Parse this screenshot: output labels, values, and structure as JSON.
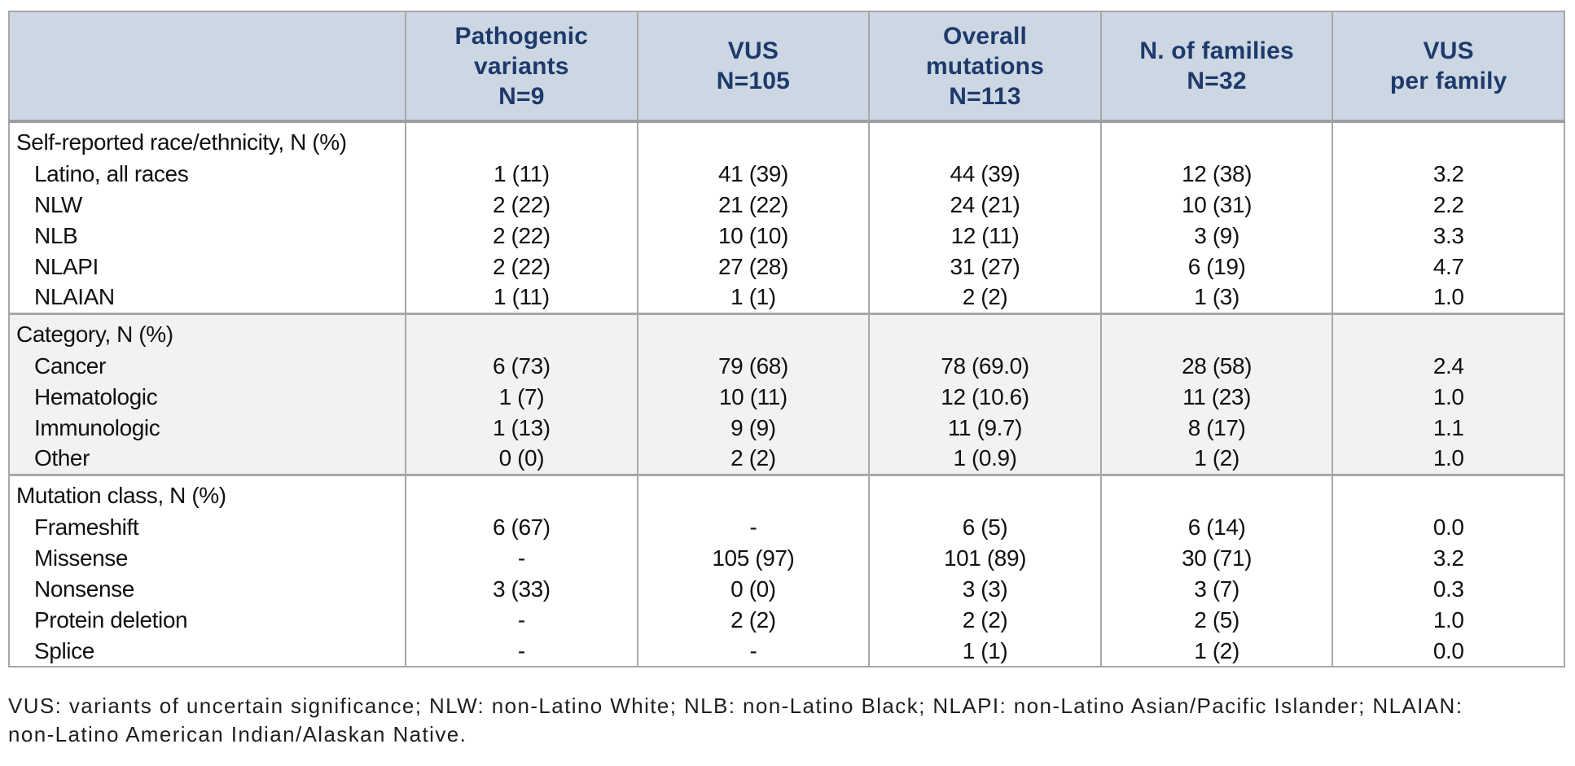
{
  "table": {
    "corner": "",
    "headers": [
      {
        "lines": [
          "Pathogenic",
          "variants",
          "N=9"
        ]
      },
      {
        "lines": [
          "VUS",
          "N=105"
        ]
      },
      {
        "lines": [
          "Overall",
          "mutations",
          "N=113"
        ]
      },
      {
        "lines": [
          "N. of families",
          "N=32"
        ]
      },
      {
        "lines": [
          "VUS",
          "per family"
        ]
      }
    ],
    "sections": [
      {
        "title": "Self-reported race/ethnicity, N (%)",
        "rows": [
          {
            "label": "Latino, all races",
            "values": [
              "1 (11)",
              "41 (39)",
              "44 (39)",
              "12 (38)",
              "3.2"
            ]
          },
          {
            "label": "NLW",
            "values": [
              "2 (22)",
              "21 (22)",
              "24 (21)",
              "10 (31)",
              "2.2"
            ]
          },
          {
            "label": "NLB",
            "values": [
              "2 (22)",
              "10 (10)",
              "12 (11)",
              "3 (9)",
              "3.3"
            ]
          },
          {
            "label": "NLAPI",
            "values": [
              "2 (22)",
              "27 (28)",
              "31 (27)",
              "6 (19)",
              "4.7"
            ]
          },
          {
            "label": "NLAIAN",
            "values": [
              "1 (11)",
              "1 (1)",
              "2 (2)",
              "1 (3)",
              "1.0"
            ]
          }
        ]
      },
      {
        "title": "Category, N (%)",
        "rows": [
          {
            "label": "Cancer",
            "values": [
              "6 (73)",
              "79 (68)",
              "78 (69.0)",
              "28 (58)",
              "2.4"
            ]
          },
          {
            "label": "Hematologic",
            "values": [
              "1 (7)",
              "10 (11)",
              "12 (10.6)",
              "11 (23)",
              "1.0"
            ]
          },
          {
            "label": "Immunologic",
            "values": [
              "1 (13)",
              "9 (9)",
              "11 (9.7)",
              "8 (17)",
              "1.1"
            ]
          },
          {
            "label": "Other",
            "values": [
              "0 (0)",
              "2 (2)",
              "1 (0.9)",
              "1 (2)",
              "1.0"
            ]
          }
        ]
      },
      {
        "title": "Mutation class, N (%)",
        "rows": [
          {
            "label": "Frameshift",
            "values": [
              "6 (67)",
              "-",
              "6 (5)",
              "6 (14)",
              "0.0"
            ]
          },
          {
            "label": "Missense",
            "values": [
              "-",
              "105 (97)",
              "101 (89)",
              "30 (71)",
              "3.2"
            ]
          },
          {
            "label": "Nonsense",
            "values": [
              "3 (33)",
              "0 (0)",
              "3 (3)",
              "3 (7)",
              "0.3"
            ]
          },
          {
            "label": "Protein deletion",
            "values": [
              "-",
              "2 (2)",
              "2 (2)",
              "2 (5)",
              "1.0"
            ]
          },
          {
            "label": "Splice",
            "values": [
              "-",
              "-",
              "1 (1)",
              "1 (2)",
              "0.0"
            ]
          }
        ]
      }
    ],
    "footnote": {
      "line1": "VUS: variants of uncertain significance; NLW: non-Latino White; NLB: non-Latino Black; NLAPI: non-Latino Asian/Pacific Islander; NLAIAN:",
      "line2": "non-Latino American Indian/Alaskan Native."
    }
  },
  "colors": {
    "header_bg": "#ccd7e3",
    "header_text": "#1e3a6c",
    "shaded_row_bg": "#f2f2f2",
    "border": "#a8a8a8",
    "body_text": "#111111"
  }
}
